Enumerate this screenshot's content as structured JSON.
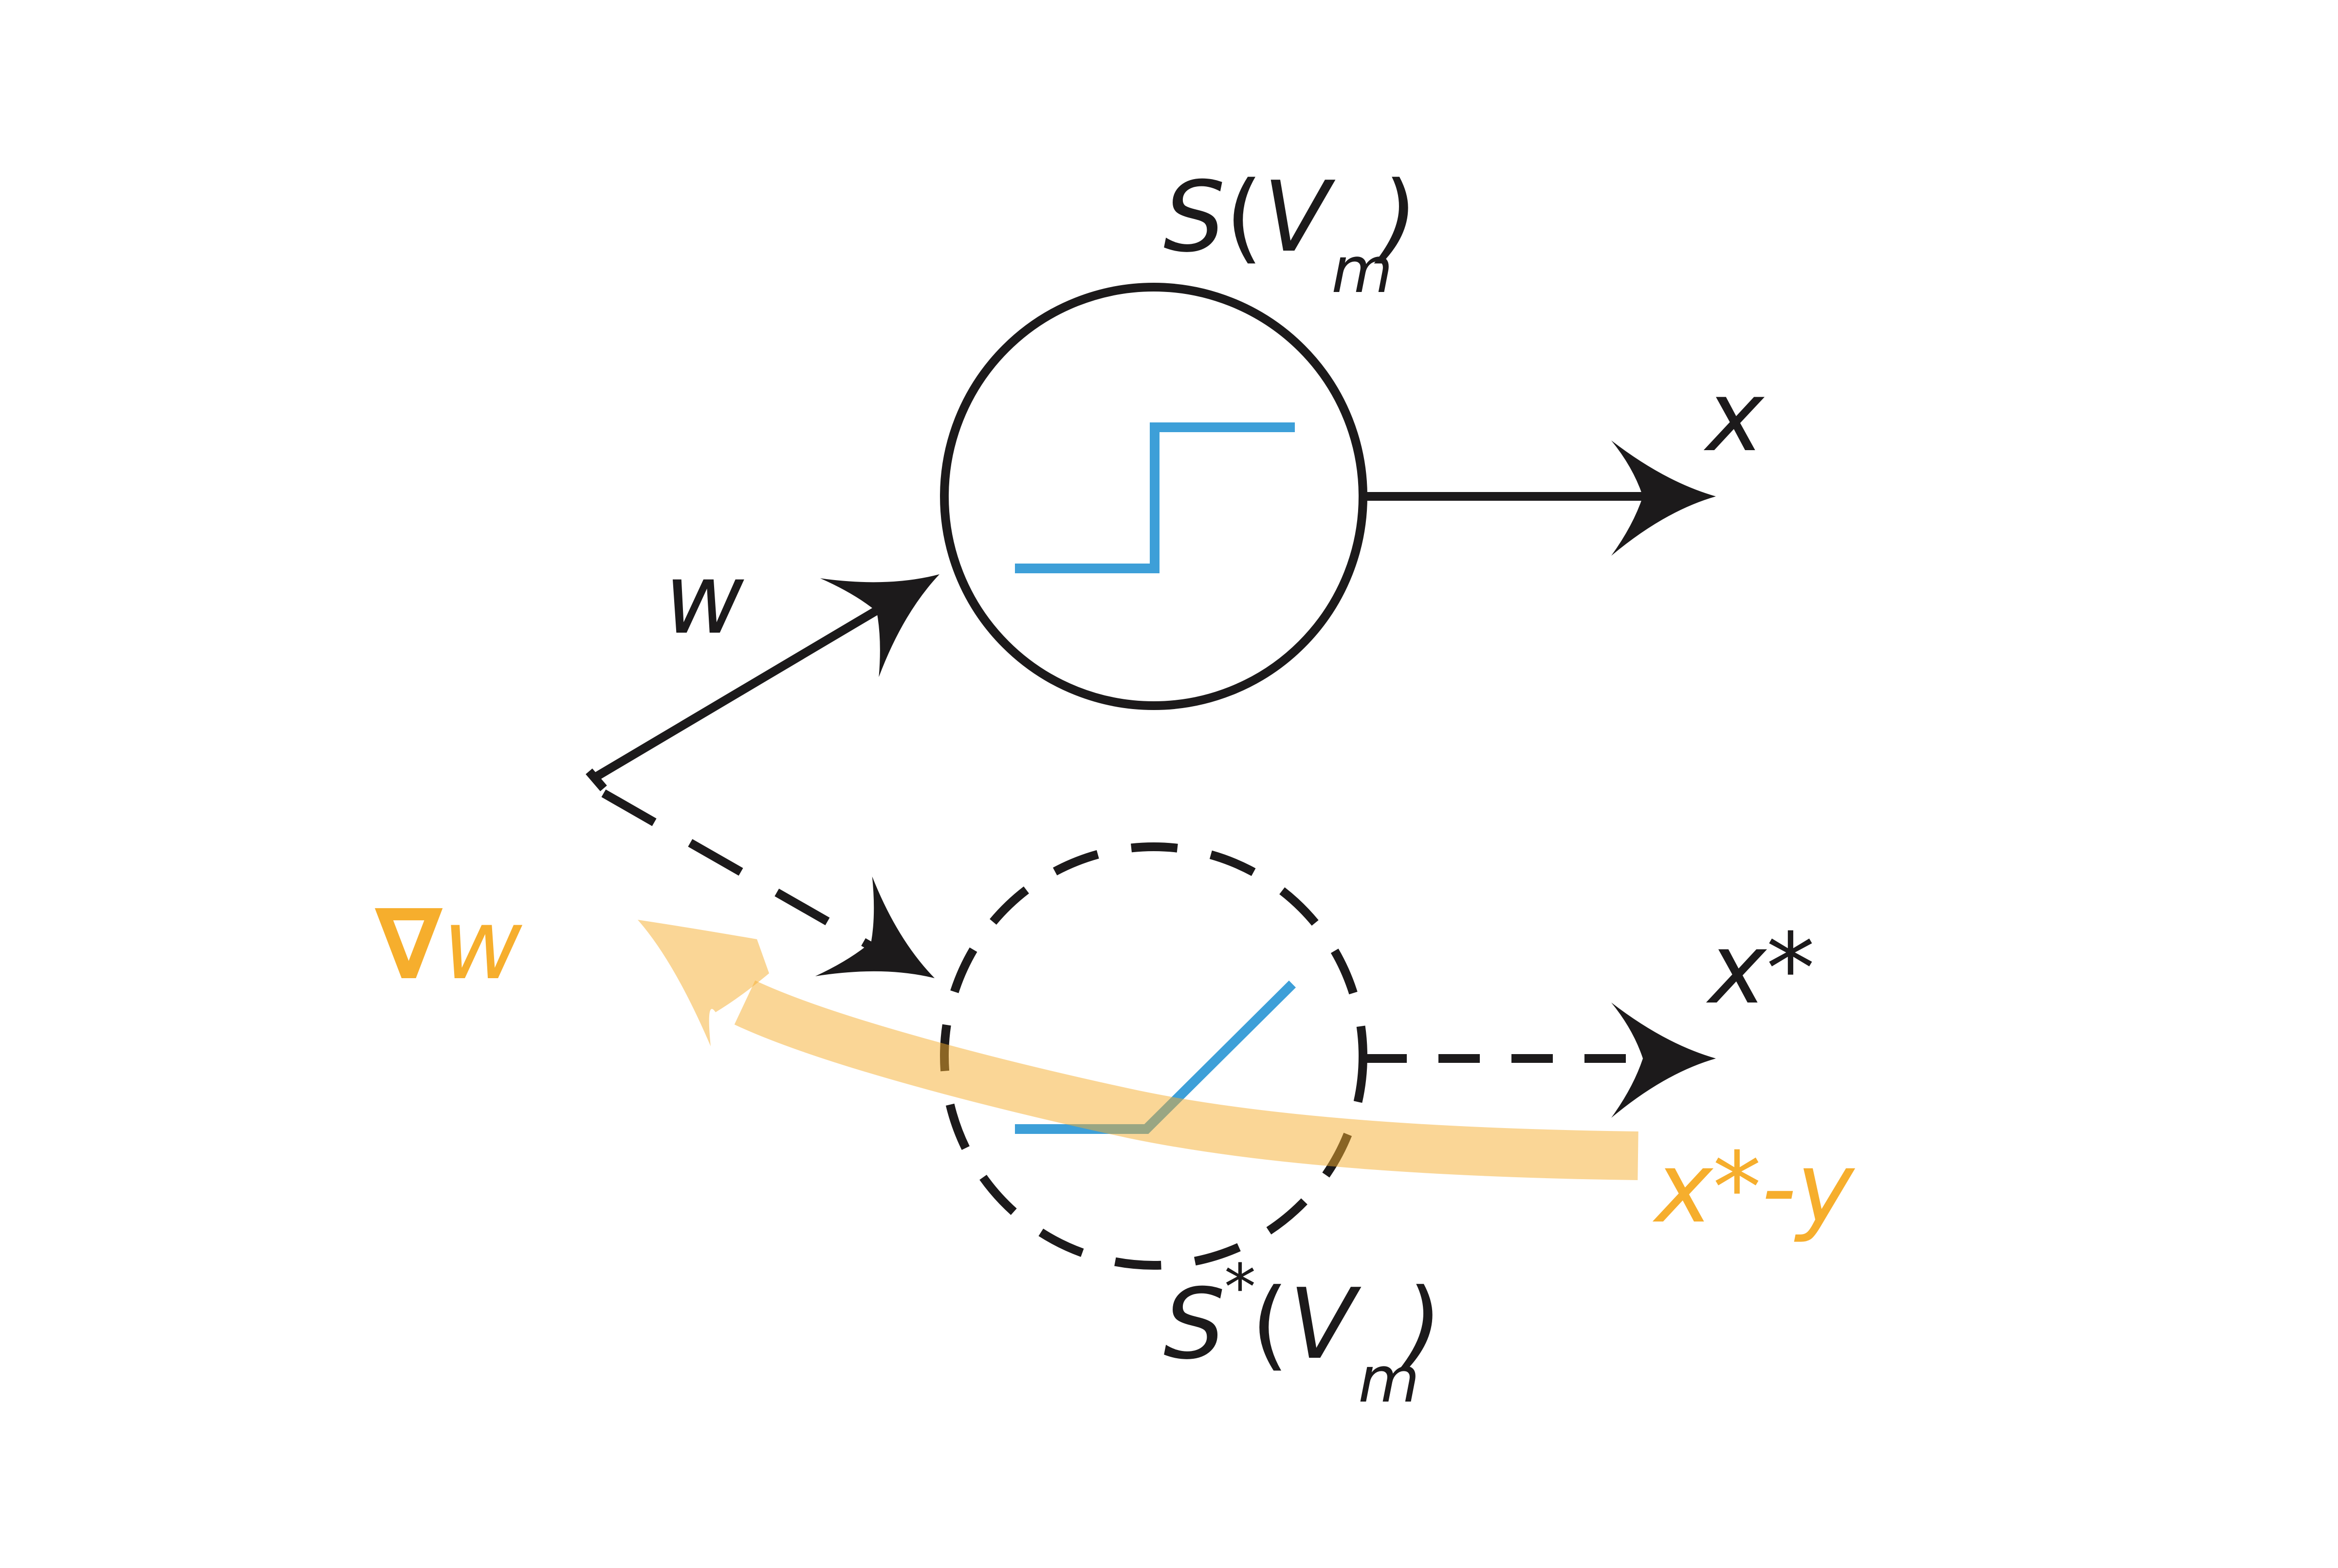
{
  "colors": {
    "ink": "#1c1a1b",
    "activation": "#3d9fd8",
    "gradient": "#f6ae2d",
    "gradient_band": "#fbd89a"
  },
  "labels": {
    "output": "x",
    "weight": "w",
    "surrogate_output": "x*",
    "grad_weight_symbol": "∇",
    "grad_weight_var": "w",
    "error": "x*-y",
    "neuron": {
      "func": "S",
      "open": "(",
      "var": "V",
      "sub": "m",
      "close": ")"
    },
    "surrogate_neuron": {
      "func": "S",
      "sup": "*",
      "open": "(",
      "var": "V",
      "sub": "m",
      "close": ")"
    }
  }
}
